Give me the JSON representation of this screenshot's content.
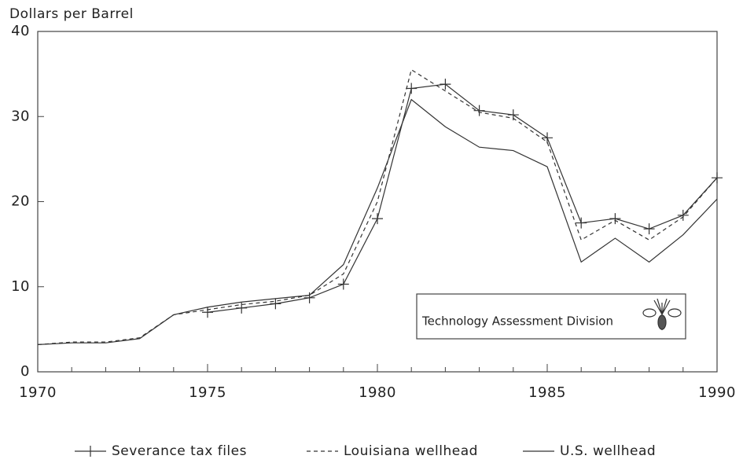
{
  "chart_data": {
    "type": "line",
    "y_label": "Dollars per Barrel",
    "x": [
      1970,
      1971,
      1972,
      1973,
      1974,
      1975,
      1976,
      1977,
      1978,
      1979,
      1980,
      1981,
      1982,
      1983,
      1984,
      1985,
      1986,
      1987,
      1988,
      1989,
      1990
    ],
    "series": [
      {
        "name": "Severance tax files",
        "color": "#333333",
        "style": "plus",
        "values": [
          null,
          null,
          null,
          null,
          null,
          7.0,
          7.5,
          8.0,
          8.7,
          10.3,
          18.0,
          33.3,
          33.8,
          30.7,
          30.2,
          27.5,
          17.5,
          18.0,
          16.8,
          18.4,
          22.8
        ]
      },
      {
        "name": "Louisiana wellhead",
        "color": "#333333",
        "style": "dashed",
        "values": [
          3.2,
          3.5,
          3.5,
          4.0,
          6.7,
          7.3,
          7.9,
          8.3,
          9.0,
          11.5,
          20.0,
          35.5,
          33.0,
          30.5,
          29.8,
          27.0,
          15.5,
          17.8,
          15.5,
          18.2,
          22.8
        ]
      },
      {
        "name": "U.S. wellhead",
        "color": "#333333",
        "style": "solid",
        "values": [
          3.2,
          3.4,
          3.4,
          3.9,
          6.7,
          7.6,
          8.2,
          8.6,
          9.0,
          12.6,
          21.6,
          32.0,
          28.8,
          26.4,
          26.0,
          24.1,
          12.9,
          15.7,
          12.9,
          16.1,
          20.3
        ]
      }
    ],
    "xlim": [
      1970,
      1990
    ],
    "xticks": [
      1970,
      1975,
      1980,
      1985,
      1990
    ],
    "ylim": [
      0,
      40
    ],
    "yticks": [
      0,
      10,
      20,
      30,
      40
    ],
    "annotation": "Technology Assessment Division"
  }
}
